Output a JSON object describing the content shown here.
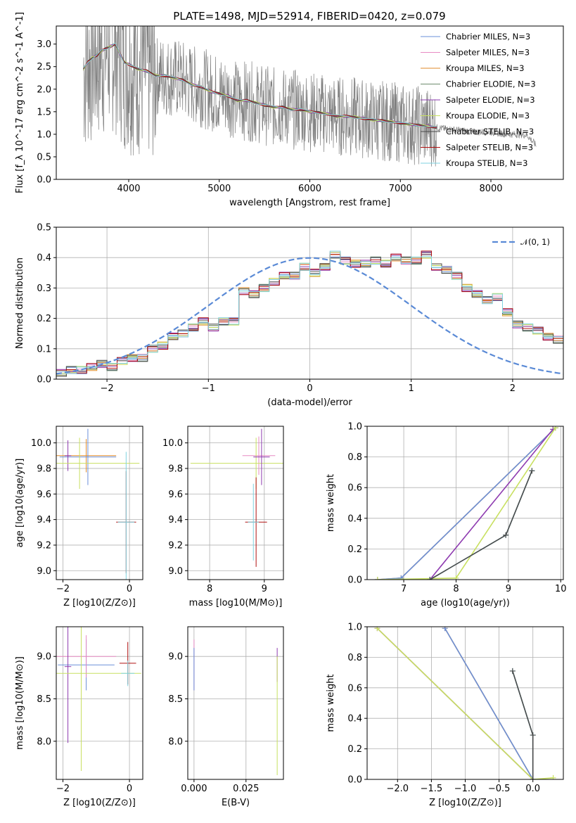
{
  "figure": {
    "title": "PLATE=1498, MJD=52914, FIBERID=0420, z=0.079",
    "colors": {
      "chabrier_miles": "#6a8fd8",
      "salpeter_miles": "#e78ac3",
      "kroupa_miles": "#e08a28",
      "chabrier_elodie": "#6e8c6e",
      "salpeter_elodie": "#8e3bb0",
      "kroupa_elodie": "#c8e060",
      "chabrier_stelib": "#4a4a4a",
      "salpeter_stelib": "#b01010",
      "kroupa_stelib": "#7fd3e0",
      "data": "#808080",
      "normal": "#5a8ad6"
    }
  },
  "chart_data": [
    {
      "id": "spectrum",
      "type": "line",
      "title": "PLATE=1498, MJD=52914, FIBERID=0420, z=0.079",
      "xlabel": "wavelength [Angstrom, rest frame]",
      "ylabel": "Flux [f_λ 10^-17 erg cm^-2 s^-1 A^-1]",
      "xlim": [
        3200,
        8800
      ],
      "ylim": [
        0,
        3.4
      ],
      "xticks": [
        4000,
        5000,
        6000,
        7000,
        8000
      ],
      "yticks": [
        0.0,
        0.5,
        1.0,
        1.5,
        2.0,
        2.5,
        3.0
      ],
      "grid": false,
      "legend_position": "top-right",
      "legend": [
        "Chabrier MILES, N_SSP=3",
        "Salpeter MILES, N_SSP=3",
        "Kroupa MILES, N_SSP=3",
        "Chabrier ELODIE, N_SSP=3",
        "Salpeter ELODIE, N_SSP=3",
        "Kroupa ELODIE, N_SSP=3",
        "Chabrier STELIB, N_SSP=3",
        "Salpeter STELIB, N_SSP=3",
        "Kroupa STELIB, N_SSP=3"
      ],
      "model_x": [
        3500,
        3550,
        3600,
        3650,
        3700,
        3750,
        3800,
        3850,
        3900,
        3950,
        4000,
        4100,
        4200,
        4300,
        4400,
        4500,
        4600,
        4700,
        4800,
        4900,
        5000,
        5100,
        5200,
        5300,
        5400,
        5500,
        5600,
        5700,
        5800,
        5900,
        6000,
        6100,
        6200,
        6300,
        6400,
        6500,
        6600,
        6700,
        6800,
        6900,
        7000,
        7100,
        7200,
        7300,
        7400,
        7500,
        7600,
        7700,
        7800,
        7900,
        8000,
        8100,
        8200,
        8300,
        8400,
        8500
      ],
      "model_y": [
        2.45,
        2.6,
        2.7,
        2.75,
        2.85,
        2.9,
        2.95,
        3.0,
        2.8,
        2.6,
        2.55,
        2.45,
        2.4,
        2.3,
        2.3,
        2.25,
        2.2,
        2.1,
        2.05,
        1.95,
        1.9,
        1.85,
        1.75,
        1.75,
        1.7,
        1.65,
        1.6,
        1.6,
        1.55,
        1.55,
        1.5,
        1.48,
        1.45,
        1.4,
        1.4,
        1.38,
        1.35,
        1.32,
        1.3,
        1.28,
        1.25,
        1.22,
        1.2,
        1.18,
        1.15,
        1.12,
        1.1,
        1.08,
        1.05,
        1.05,
        1.05,
        1.02,
        1.0,
        1.0,
        0.98,
        0.75
      ],
      "data_range": [
        3500,
        7420
      ]
    },
    {
      "id": "residuals",
      "type": "step",
      "xlabel": "(data-model)/error",
      "ylabel": "Normed distribution",
      "xlim": [
        -2.5,
        2.5
      ],
      "ylim": [
        0,
        0.5
      ],
      "xticks": [
        -2,
        -1,
        0,
        1,
        2
      ],
      "yticks": [
        0.0,
        0.1,
        0.2,
        0.3,
        0.4,
        0.5
      ],
      "grid": true,
      "legend_position": "top-right",
      "legend": [
        "𝒩(0, 1)"
      ],
      "bin_width": 0.1,
      "bin_start": -2.5,
      "hist": [
        0.02,
        0.03,
        0.03,
        0.04,
        0.05,
        0.04,
        0.06,
        0.07,
        0.07,
        0.1,
        0.11,
        0.14,
        0.15,
        0.17,
        0.19,
        0.17,
        0.19,
        0.19,
        0.29,
        0.28,
        0.3,
        0.32,
        0.34,
        0.34,
        0.37,
        0.35,
        0.37,
        0.41,
        0.39,
        0.38,
        0.38,
        0.39,
        0.38,
        0.4,
        0.39,
        0.39,
        0.41,
        0.37,
        0.36,
        0.34,
        0.3,
        0.28,
        0.26,
        0.27,
        0.22,
        0.18,
        0.17,
        0.16,
        0.14,
        0.13,
        0.12,
        0.1,
        0.09,
        0.08,
        0.07,
        0.06,
        0.05,
        0.05,
        0.04,
        0.03,
        0.03,
        0.02,
        0.02,
        0.02
      ]
    },
    {
      "id": "age_vs_Z",
      "type": "errorbar",
      "xlabel": "Z [log10(Z/Z⊙)]",
      "ylabel": "age [log10(age/yr)]",
      "xlim": [
        -2.2,
        0.4
      ],
      "ylim": [
        8.93,
        10.13
      ],
      "xticks": [
        -2,
        0
      ],
      "yticks": [
        9.0,
        9.2,
        9.4,
        9.6,
        9.8,
        10.0
      ],
      "grid": true,
      "points": [
        {
          "x": -1.3,
          "y": 9.9,
          "xerr": 0.9,
          "yerr": 0.13,
          "color": "kroupa_miles"
        },
        {
          "x": -1.25,
          "y": 9.89,
          "xerr": 0.85,
          "yerr": 0.22,
          "color": "chabrier_miles"
        },
        {
          "x": -1.85,
          "y": 9.9,
          "xerr": 0.1,
          "yerr": 0.12,
          "color": "salpeter_elodie"
        },
        {
          "x": -1.5,
          "y": 9.84,
          "xerr": 1.8,
          "yerr": 0.2,
          "color": "kroupa_elodie"
        },
        {
          "x": -0.1,
          "y": 9.38,
          "xerr": 0.3,
          "yerr": 0.4,
          "color": "salpeter_stelib"
        },
        {
          "x": -0.1,
          "y": 9.38,
          "xerr": 0.25,
          "yerr": 0.55,
          "color": "kroupa_stelib"
        }
      ]
    },
    {
      "id": "age_vs_mass",
      "type": "errorbar",
      "xlabel": "mass [log10(M/M⊙)]",
      "ylabel": "",
      "xlim": [
        7.6,
        9.35
      ],
      "ylim": [
        8.93,
        10.13
      ],
      "xticks": [
        8,
        9
      ],
      "yticks": [
        9.0,
        9.2,
        9.4,
        9.6,
        9.8,
        10.0
      ],
      "grid": true,
      "points": [
        {
          "x": 8.9,
          "y": 9.9,
          "xerr": 0.3,
          "yerr": 0.15,
          "color": "salpeter_miles"
        },
        {
          "x": 8.85,
          "y": 9.84,
          "xerr": 1.2,
          "yerr": 0.2,
          "color": "kroupa_elodie"
        },
        {
          "x": 8.95,
          "y": 9.89,
          "xerr": 0.15,
          "yerr": 0.22,
          "color": "salpeter_elodie"
        },
        {
          "x": 8.85,
          "y": 9.38,
          "xerr": 0.2,
          "yerr": 0.35,
          "color": "salpeter_stelib"
        },
        {
          "x": 8.8,
          "y": 9.38,
          "xerr": 0.1,
          "yerr": 0.3,
          "color": "kroupa_stelib"
        }
      ]
    },
    {
      "id": "massweight_vs_age",
      "type": "line",
      "xlabel": "age (log10(age/yr))",
      "ylabel": "mass weight",
      "xlim": [
        6.3,
        10.05
      ],
      "ylim": [
        0,
        1.0
      ],
      "xticks": [
        7,
        8,
        9,
        10
      ],
      "yticks": [
        0.0,
        0.2,
        0.4,
        0.6,
        0.8,
        1.0
      ],
      "grid": true,
      "series": [
        {
          "color": "kroupa_miles",
          "x": [
            6.5,
            6.95,
            9.9
          ],
          "y": [
            0.0,
            0.01,
            0.99
          ]
        },
        {
          "color": "chabrier_miles",
          "x": [
            6.5,
            6.95,
            9.9
          ],
          "y": [
            0.0,
            0.01,
            0.99
          ]
        },
        {
          "color": "salpeter_elodie",
          "x": [
            7.5,
            9.85
          ],
          "y": [
            0.0,
            0.98
          ]
        },
        {
          "color": "kroupa_elodie",
          "x": [
            6.5,
            8.0,
            9.9
          ],
          "y": [
            0.0,
            0.01,
            0.99
          ]
        },
        {
          "color": "kroupa_stelib",
          "x": [
            7.5,
            8.95,
            9.45
          ],
          "y": [
            0.0,
            0.29,
            0.71
          ]
        },
        {
          "color": "chabrier_stelib",
          "x": [
            7.5,
            8.95,
            9.45
          ],
          "y": [
            0.0,
            0.29,
            0.71
          ]
        }
      ]
    },
    {
      "id": "mass_vs_Z",
      "type": "errorbar",
      "xlabel": "Z [log10(Z/Z⊙)]",
      "ylabel": "mass [log10(M/M⊙)]",
      "xlim": [
        -2.2,
        0.4
      ],
      "ylim": [
        7.55,
        9.35
      ],
      "xticks": [
        -2,
        0
      ],
      "yticks": [
        8.0,
        8.5,
        9.0
      ],
      "grid": true,
      "points": [
        {
          "x": -1.3,
          "y": 8.9,
          "xerr": 0.85,
          "yerr": 0.3,
          "color": "chabrier_miles"
        },
        {
          "x": -1.3,
          "y": 9.0,
          "xerr": 0.9,
          "yerr": 0.25,
          "color": "salpeter_miles"
        },
        {
          "x": -1.85,
          "y": 8.88,
          "xerr": 0.1,
          "yerr": 0.9,
          "color": "salpeter_elodie"
        },
        {
          "x": -1.45,
          "y": 8.8,
          "xerr": 1.8,
          "yerr": 1.15,
          "color": "kroupa_elodie"
        },
        {
          "x": -0.05,
          "y": 8.92,
          "xerr": 0.25,
          "yerr": 0.25,
          "color": "salpeter_stelib"
        },
        {
          "x": -0.05,
          "y": 8.8,
          "xerr": 0.2,
          "yerr": 0.15,
          "color": "kroupa_stelib"
        }
      ]
    },
    {
      "id": "mass_vs_ebv",
      "type": "errorbar",
      "xlabel": "E(B-V)",
      "ylabel": "",
      "xlim": [
        -0.003,
        0.043
      ],
      "ylim": [
        7.55,
        9.35
      ],
      "xticks": [
        0.0,
        0.025
      ],
      "xtick_labels": [
        "0.000",
        "0.025"
      ],
      "yticks": [
        8.0,
        8.5,
        9.0
      ],
      "grid": true,
      "points": [
        {
          "x": 0.0,
          "y": 8.9,
          "xerr": 0.0,
          "yerr": 0.3,
          "color": "salpeter_miles"
        },
        {
          "x": 0.0,
          "y": 8.85,
          "xerr": 0.0,
          "yerr": 0.25,
          "color": "chabrier_miles"
        },
        {
          "x": 0.04,
          "y": 8.9,
          "xerr": 0.0,
          "yerr": 0.2,
          "color": "salpeter_elodie"
        },
        {
          "x": 0.04,
          "y": 8.3,
          "xerr": 0.0,
          "yerr": 0.7,
          "color": "kroupa_elodie"
        }
      ]
    },
    {
      "id": "massweight_vs_Z",
      "type": "line",
      "xlabel": "Z [log10(Z/Z⊙)]",
      "ylabel": "mass weight",
      "xlim": [
        -2.45,
        0.45
      ],
      "ylim": [
        0,
        1.0
      ],
      "xticks": [
        -2.0,
        -1.5,
        -1.0,
        -0.5,
        0.0
      ],
      "xtick_labels": [
        "−2.0",
        "−1.5",
        "−1.0",
        "−0.5",
        "0.0"
      ],
      "yticks": [
        0.0,
        0.2,
        0.4,
        0.6,
        0.8,
        1.0
      ],
      "grid": true,
      "series": [
        {
          "color": "kroupa_miles",
          "x": [
            -1.3,
            0.0
          ],
          "y": [
            0.99,
            0.0
          ]
        },
        {
          "color": "chabrier_miles",
          "x": [
            -1.3,
            0.0
          ],
          "y": [
            0.99,
            0.0
          ]
        },
        {
          "color": "salpeter_elodie",
          "x": [
            -2.3,
            0.0
          ],
          "y": [
            0.99,
            0.0
          ]
        },
        {
          "color": "kroupa_elodie",
          "x": [
            -2.3,
            0.0,
            0.3
          ],
          "y": [
            0.99,
            0.0,
            0.01
          ]
        },
        {
          "color": "kroupa_stelib",
          "x": [
            -0.3,
            0.0,
            0.0
          ],
          "y": [
            0.71,
            0.29,
            0.0
          ]
        },
        {
          "color": "chabrier_stelib",
          "x": [
            -0.3,
            0.0,
            0.0
          ],
          "y": [
            0.71,
            0.29,
            0.0
          ]
        }
      ]
    }
  ]
}
